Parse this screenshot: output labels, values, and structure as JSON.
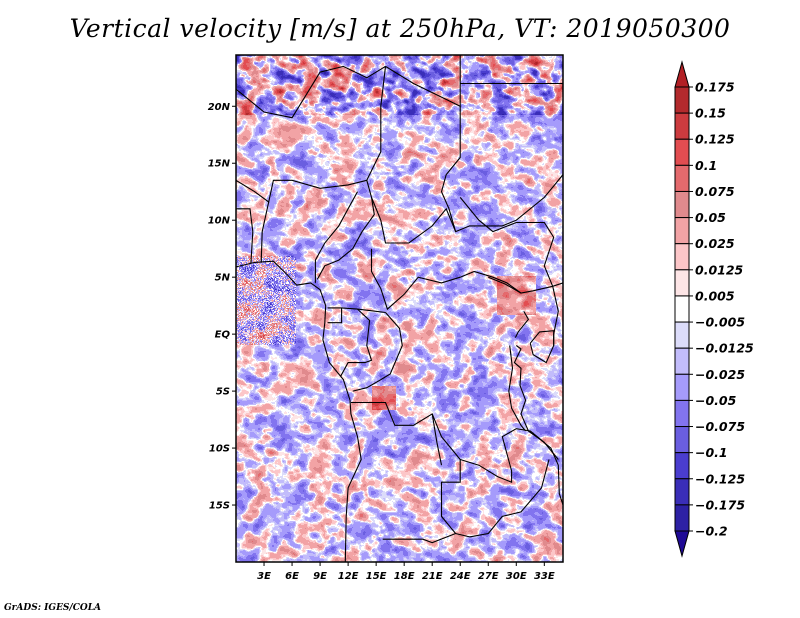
{
  "title": "Vertical velocity [m/s] at 250hPa, VT: 2019050300",
  "footer": "GrADS: IGES/COLA",
  "chart_data": {
    "type": "heatmap",
    "title": "Vertical velocity [m/s] at 250hPa, VT: 2019050300",
    "variable": "Vertical velocity",
    "units": "m/s",
    "level": "250hPa",
    "valid_time": "2019050300",
    "xlabel": "",
    "ylabel": "",
    "lon_range": [
      0,
      35
    ],
    "lat_range": [
      -20,
      24.5
    ],
    "x_ticks": [
      {
        "value": 3,
        "label": "3E"
      },
      {
        "value": 6,
        "label": "6E"
      },
      {
        "value": 9,
        "label": "9E"
      },
      {
        "value": 12,
        "label": "12E"
      },
      {
        "value": 15,
        "label": "15E"
      },
      {
        "value": 18,
        "label": "18E"
      },
      {
        "value": 21,
        "label": "21E"
      },
      {
        "value": 24,
        "label": "24E"
      },
      {
        "value": 27,
        "label": "27E"
      },
      {
        "value": 30,
        "label": "30E"
      },
      {
        "value": 33,
        "label": "33E"
      }
    ],
    "y_ticks": [
      {
        "value": 20,
        "label": "20N"
      },
      {
        "value": 15,
        "label": "15N"
      },
      {
        "value": 10,
        "label": "10N"
      },
      {
        "value": 5,
        "label": "5N"
      },
      {
        "value": 0,
        "label": "EQ"
      },
      {
        "value": -5,
        "label": "5S"
      },
      {
        "value": -10,
        "label": "10S"
      },
      {
        "value": -15,
        "label": "15S"
      }
    ],
    "colorbar": {
      "orientation": "vertical",
      "placement": "right",
      "extend": "both",
      "levels": [
        0.175,
        0.15,
        0.125,
        0.1,
        0.075,
        0.05,
        0.025,
        0.0125,
        0.005,
        -0.005,
        -0.0125,
        -0.025,
        -0.05,
        -0.075,
        -0.1,
        -0.125,
        -0.175,
        -0.2
      ],
      "level_labels": [
        "0.175",
        "0.15",
        "0.125",
        "0.1",
        "0.075",
        "0.05",
        "0.025",
        "0.0125",
        "0.005",
        "−0.005",
        "−0.0125",
        "−0.025",
        "−0.05",
        "−0.075",
        "−0.1",
        "−0.125",
        "−0.175",
        "−0.2"
      ],
      "colors_top_to_bottom": [
        "#b22025",
        "#b32a2d",
        "#cc3b3f",
        "#e24d51",
        "#e46a6d",
        "#e08a8d",
        "#f2a3a5",
        "#fcc6c8",
        "#fde5e6",
        "#ffffff",
        "#dcdcfa",
        "#c2bcfb",
        "#a59bfb",
        "#8274ef",
        "#6a5ee0",
        "#4a3dcf",
        "#3a2eb8",
        "#2d21a4",
        "#1f0a96"
      ]
    },
    "grid": false,
    "notes": "Shaded field of 250hPa vertical velocity over Central Africa with country boundaries and coastlines."
  }
}
